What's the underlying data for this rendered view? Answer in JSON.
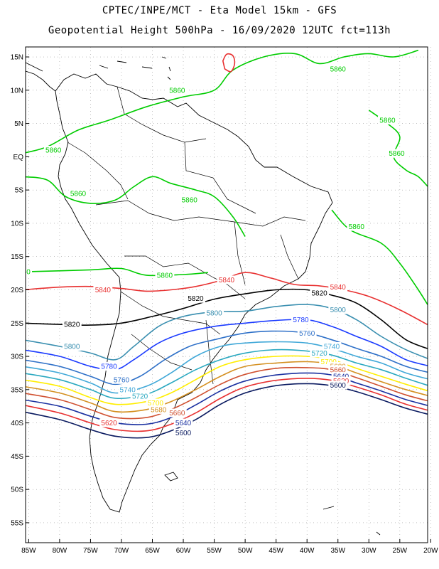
{
  "title": {
    "line1": "CPTEC/INPE/MCT -  Eta Model 15km - GFS",
    "line2": "Geopotential Height 500hPa - 16/09/2020 12UTC fct=113h"
  },
  "axes": {
    "lat_labels": [
      "15N",
      "10N",
      "5N",
      "EQ",
      "5S",
      "10S",
      "15S",
      "20S",
      "25S",
      "30S",
      "35S",
      "40S",
      "45S",
      "50S",
      "55S"
    ],
    "lat_values": [
      15,
      10,
      5,
      0,
      -5,
      -10,
      -15,
      -20,
      -25,
      -30,
      -35,
      -40,
      -45,
      -50,
      -55
    ],
    "lon_labels": [
      "85W",
      "80W",
      "75W",
      "70W",
      "65W",
      "60W",
      "55W",
      "50W",
      "45W",
      "40W",
      "35W",
      "30W",
      "25W",
      "20W"
    ],
    "lon_values": [
      -85,
      -80,
      -75,
      -70,
      -65,
      -60,
      -55,
      -50,
      -45,
      -40,
      -35,
      -30,
      -25,
      -20
    ],
    "lon_range": [
      -85.5,
      -20.5
    ],
    "lat_range": [
      -58,
      16.5
    ]
  },
  "colors": {
    "c5860": "#00cc00",
    "c5840": "#e83030",
    "c5820": "#000000",
    "c5800": "#3a8fb0",
    "c5780": "#1a3aff",
    "c5760": "#2e70c8",
    "c5740": "#40a8d8",
    "c5720": "#2aa8c0",
    "c5700": "#ffee00",
    "c5680": "#d49020",
    "c5660": "#d05030",
    "c5640": "#1a30a0",
    "c5600": "#0a1a60",
    "coast": "#000000",
    "grid": "#999999"
  },
  "contours": [
    {
      "value": 5860,
      "color_key": "c5860",
      "label": "5860",
      "points": [
        [
          -86,
          -17.3
        ],
        [
          -75,
          -17
        ],
        [
          -70,
          -16.8
        ],
        [
          -66,
          -17.8
        ],
        [
          -60,
          -17.7
        ],
        [
          -56,
          -17.4
        ]
      ],
      "labels": [
        [
          -86,
          -17.3
        ],
        [
          -63,
          -17.8
        ]
      ]
    },
    {
      "value": 5860,
      "color_key": "c5860",
      "label": "5860",
      "points": [
        [
          -86,
          0.5
        ],
        [
          -82,
          1.5
        ],
        [
          -77,
          4
        ],
        [
          -72,
          5.5
        ],
        [
          -66,
          7.5
        ],
        [
          -60,
          9
        ],
        [
          -55,
          10
        ],
        [
          -52,
          13
        ],
        [
          -47,
          15
        ],
        [
          -42,
          15.5
        ],
        [
          -38,
          14
        ],
        [
          -34,
          15
        ],
        [
          -30,
          15.5
        ],
        [
          -26,
          15
        ],
        [
          -22,
          16
        ]
      ],
      "labels": [
        [
          -61,
          10
        ],
        [
          -35,
          13.2
        ],
        [
          -81,
          1
        ]
      ]
    },
    {
      "value": 5860,
      "color_key": "c5860",
      "label": "5860",
      "points": [
        [
          -86,
          -3
        ],
        [
          -82,
          -3.5
        ],
        [
          -79,
          -6
        ],
        [
          -75,
          -7
        ],
        [
          -71,
          -6.5
        ],
        [
          -68,
          -4.5
        ],
        [
          -65,
          -3
        ],
        [
          -62,
          -4
        ],
        [
          -58,
          -5
        ],
        [
          -55,
          -6
        ],
        [
          -52,
          -9
        ],
        [
          -50,
          -12
        ]
      ],
      "labels": [
        [
          -77,
          -5.5
        ],
        [
          -59,
          -6.5
        ]
      ]
    },
    {
      "value": 5860,
      "color_key": "c5860",
      "label": "5860",
      "points": [
        [
          -36,
          -8
        ],
        [
          -33,
          -11
        ],
        [
          -28,
          -13
        ],
        [
          -25,
          -16
        ],
        [
          -22,
          -20
        ],
        [
          -20,
          -23
        ]
      ],
      "labels": [
        [
          -32,
          -10.5
        ]
      ]
    },
    {
      "value": 5860,
      "color_key": "c5860",
      "label": "5860",
      "points": [
        [
          -30,
          7
        ],
        [
          -27,
          5
        ],
        [
          -25,
          3
        ],
        [
          -26,
          0
        ],
        [
          -24,
          -2
        ],
        [
          -22,
          -3
        ],
        [
          -20,
          -5
        ]
      ],
      "labels": [
        [
          -27,
          5.5
        ],
        [
          -25.5,
          0.5
        ]
      ]
    },
    {
      "value": 5840,
      "color_key": "c5840",
      "label": "5840",
      "points": [
        [
          -86,
          -20
        ],
        [
          -80,
          -19.6
        ],
        [
          -75,
          -19.5
        ],
        [
          -70,
          -19.8
        ],
        [
          -66,
          -20.2
        ],
        [
          -62,
          -20
        ],
        [
          -58,
          -19.5
        ],
        [
          -54,
          -18.6
        ],
        [
          -50,
          -17.4
        ],
        [
          -46,
          -18.2
        ],
        [
          -42,
          -19.2
        ],
        [
          -38,
          -19.4
        ],
        [
          -34,
          -20
        ],
        [
          -30,
          -21
        ],
        [
          -25,
          -23
        ],
        [
          -20,
          -25.5
        ]
      ],
      "labels": [
        [
          -73,
          -20
        ],
        [
          -53,
          -18.5
        ],
        [
          -35,
          -19.6
        ]
      ]
    },
    {
      "value": 5820,
      "color_key": "c5820",
      "label": "5820",
      "points": [
        [
          -86,
          -25
        ],
        [
          -80,
          -25.2
        ],
        [
          -75,
          -25.3
        ],
        [
          -70,
          -25
        ],
        [
          -65,
          -24
        ],
        [
          -60,
          -22.8
        ],
        [
          -55,
          -21.4
        ],
        [
          -50,
          -20.6
        ],
        [
          -45,
          -20
        ],
        [
          -40,
          -20
        ],
        [
          -36,
          -20.8
        ],
        [
          -32,
          -22
        ],
        [
          -28,
          -24.5
        ],
        [
          -24,
          -27.5
        ],
        [
          -20,
          -29
        ]
      ],
      "labels": [
        [
          -78,
          -25.2
        ],
        [
          -58,
          -21.3
        ],
        [
          -38,
          -20.5
        ]
      ]
    },
    {
      "value": 5800,
      "color_key": "c5800",
      "label": "5800",
      "points": [
        [
          -86,
          -27.5
        ],
        [
          -80,
          -28.5
        ],
        [
          -75,
          -29.5
        ],
        [
          -71,
          -30.5
        ],
        [
          -68,
          -28.5
        ],
        [
          -64,
          -25.5
        ],
        [
          -60,
          -24
        ],
        [
          -55,
          -23.3
        ],
        [
          -50,
          -23.2
        ],
        [
          -45,
          -22.5
        ],
        [
          -40,
          -22.2
        ],
        [
          -36,
          -22.8
        ],
        [
          -32,
          -24.5
        ],
        [
          -28,
          -27
        ],
        [
          -24,
          -29
        ],
        [
          -20,
          -30.5
        ]
      ],
      "labels": [
        [
          -78,
          -28.5
        ],
        [
          -55,
          -23.5
        ],
        [
          -35,
          -23
        ]
      ]
    },
    {
      "value": 5780,
      "color_key": "c5780",
      "label": "5780",
      "points": [
        [
          -86,
          -29
        ],
        [
          -80,
          -30
        ],
        [
          -75,
          -31.5
        ],
        [
          -71,
          -32
        ],
        [
          -68,
          -30.5
        ],
        [
          -64,
          -28
        ],
        [
          -60,
          -26.5
        ],
        [
          -55,
          -25.5
        ],
        [
          -50,
          -25
        ],
        [
          -45,
          -24.6
        ],
        [
          -40,
          -24.5
        ],
        [
          -36,
          -25.5
        ],
        [
          -32,
          -27
        ],
        [
          -28,
          -28.5
        ],
        [
          -24,
          -30.5
        ],
        [
          -20,
          -31.5
        ]
      ],
      "labels": [
        [
          -72,
          -31.5
        ],
        [
          -41,
          -24.5
        ]
      ]
    },
    {
      "value": 5760,
      "color_key": "c5760",
      "label": "5760",
      "points": [
        [
          -86,
          -30.5
        ],
        [
          -80,
          -31.5
        ],
        [
          -75,
          -33
        ],
        [
          -71,
          -34.2
        ],
        [
          -67,
          -33
        ],
        [
          -63,
          -30.5
        ],
        [
          -59,
          -28.5
        ],
        [
          -55,
          -27.5
        ],
        [
          -50,
          -26.5
        ],
        [
          -45,
          -26.2
        ],
        [
          -40,
          -26.5
        ],
        [
          -36,
          -27.5
        ],
        [
          -32,
          -28.8
        ],
        [
          -28,
          -30
        ],
        [
          -24,
          -31.5
        ],
        [
          -20,
          -32.5
        ]
      ],
      "labels": [
        [
          -70,
          -33.5
        ],
        [
          -40,
          -26.5
        ]
      ]
    },
    {
      "value": 5740,
      "color_key": "c5740",
      "label": "5740",
      "points": [
        [
          -86,
          -31.5
        ],
        [
          -80,
          -32.5
        ],
        [
          -75,
          -34
        ],
        [
          -71,
          -35.5
        ],
        [
          -66,
          -34.5
        ],
        [
          -62,
          -32.5
        ],
        [
          -58,
          -30
        ],
        [
          -54,
          -28.5
        ],
        [
          -50,
          -28
        ],
        [
          -45,
          -27.8
        ],
        [
          -40,
          -28
        ],
        [
          -36,
          -28.8
        ],
        [
          -32,
          -30
        ],
        [
          -28,
          -31
        ],
        [
          -24,
          -32.5
        ],
        [
          -20,
          -33.5
        ]
      ],
      "labels": [
        [
          -69,
          -35
        ],
        [
          -36,
          -28.5
        ]
      ]
    },
    {
      "value": 5720,
      "color_key": "c5720",
      "label": "5720",
      "points": [
        [
          -86,
          -32.5
        ],
        [
          -80,
          -33.5
        ],
        [
          -75,
          -35
        ],
        [
          -71,
          -36.3
        ],
        [
          -66,
          -35.7
        ],
        [
          -62,
          -34
        ],
        [
          -58,
          -32
        ],
        [
          -54,
          -30.5
        ],
        [
          -50,
          -29.5
        ],
        [
          -45,
          -29
        ],
        [
          -40,
          -29.2
        ],
        [
          -36,
          -29.8
        ],
        [
          -32,
          -31
        ],
        [
          -28,
          -32
        ],
        [
          -24,
          -33.3
        ],
        [
          -20,
          -34.5
        ]
      ],
      "labels": [
        [
          -67,
          -36
        ],
        [
          -38,
          -29.5
        ]
      ]
    },
    {
      "value": 5700,
      "color_key": "c5700",
      "label": "5700",
      "points": [
        [
          -86,
          -33.5
        ],
        [
          -80,
          -34.5
        ],
        [
          -75,
          -36.2
        ],
        [
          -71,
          -37.2
        ],
        [
          -66,
          -36.8
        ],
        [
          -62,
          -35.5
        ],
        [
          -58,
          -33.5
        ],
        [
          -54,
          -31.5
        ],
        [
          -50,
          -30.5
        ],
        [
          -45,
          -30
        ],
        [
          -40,
          -30
        ],
        [
          -36,
          -30.5
        ],
        [
          -32,
          -31.8
        ],
        [
          -28,
          -33
        ],
        [
          -24,
          -34.2
        ],
        [
          -20,
          -35.3
        ]
      ],
      "labels": [
        [
          -64.5,
          -37
        ],
        [
          -36.5,
          -30.8
        ]
      ]
    },
    {
      "value": 5680,
      "color_key": "c5680",
      "label": "5680",
      "points": [
        [
          -86,
          -34.5
        ],
        [
          -80,
          -35.5
        ],
        [
          -75,
          -37
        ],
        [
          -71,
          -38.3
        ],
        [
          -66,
          -38
        ],
        [
          -62,
          -36.8
        ],
        [
          -58,
          -35
        ],
        [
          -54,
          -33
        ],
        [
          -50,
          -31.5
        ],
        [
          -45,
          -31
        ],
        [
          -40,
          -30.8
        ],
        [
          -36,
          -31.2
        ],
        [
          -32,
          -32.5
        ],
        [
          -28,
          -33.8
        ],
        [
          -24,
          -35
        ],
        [
          -20,
          -36
        ]
      ],
      "labels": [
        [
          -64,
          -38
        ],
        [
          -35,
          -31.5
        ]
      ]
    },
    {
      "value": 5660,
      "color_key": "c5660",
      "label": "5660",
      "points": [
        [
          -86,
          -35.5
        ],
        [
          -80,
          -36.5
        ],
        [
          -75,
          -38
        ],
        [
          -71,
          -39.2
        ],
        [
          -66,
          -39.2
        ],
        [
          -62,
          -38
        ],
        [
          -58,
          -36.2
        ],
        [
          -54,
          -34.2
        ],
        [
          -50,
          -32.7
        ],
        [
          -45,
          -31.8
        ],
        [
          -40,
          -31.7
        ],
        [
          -36,
          -32
        ],
        [
          -32,
          -33.2
        ],
        [
          -28,
          -34.5
        ],
        [
          -24,
          -35.8
        ],
        [
          -20,
          -36.8
        ]
      ],
      "labels": [
        [
          -61,
          -38.5
        ],
        [
          -35,
          -32
        ]
      ]
    },
    {
      "value": 5640,
      "color_key": "c5640",
      "label": "5640",
      "points": [
        [
          -86,
          -36.5
        ],
        [
          -80,
          -37.5
        ],
        [
          -75,
          -39
        ],
        [
          -71,
          -40
        ],
        [
          -66,
          -40.2
        ],
        [
          -62,
          -39.2
        ],
        [
          -58,
          -37.3
        ],
        [
          -54,
          -35.2
        ],
        [
          -50,
          -33.7
        ],
        [
          -45,
          -32.8
        ],
        [
          -40,
          -32.5
        ],
        [
          -36,
          -32.8
        ],
        [
          -32,
          -34
        ],
        [
          -28,
          -35.2
        ],
        [
          -24,
          -36.5
        ],
        [
          -20,
          -37.5
        ]
      ],
      "labels": [
        [
          -60,
          -40
        ],
        [
          -34.5,
          -33
        ]
      ]
    },
    {
      "value": 5620,
      "color_key": "c5840",
      "label": "5620",
      "points": [
        [
          -86,
          -37.3
        ],
        [
          -80,
          -38.5
        ],
        [
          -75,
          -40
        ],
        [
          -71,
          -41
        ],
        [
          -66,
          -41.2
        ],
        [
          -62,
          -40.2
        ],
        [
          -58,
          -38.5
        ],
        [
          -54,
          -36.3
        ],
        [
          -50,
          -34.6
        ],
        [
          -45,
          -33.6
        ],
        [
          -40,
          -33.3
        ],
        [
          -36,
          -33.6
        ],
        [
          -32,
          -34.6
        ],
        [
          -28,
          -35.8
        ],
        [
          -24,
          -37.2
        ],
        [
          -20,
          -38.2
        ]
      ],
      "labels": [
        [
          -72,
          -40
        ],
        [
          -34.5,
          -33.7
        ]
      ]
    },
    {
      "value": 5600,
      "color_key": "c5600",
      "label": "5600",
      "points": [
        [
          -86,
          -38.3
        ],
        [
          -80,
          -39.5
        ],
        [
          -75,
          -41
        ],
        [
          -71,
          -42
        ],
        [
          -66,
          -42.2
        ],
        [
          -62,
          -41.2
        ],
        [
          -58,
          -39.5
        ],
        [
          -54,
          -37.2
        ],
        [
          -50,
          -35.5
        ],
        [
          -45,
          -34.4
        ],
        [
          -40,
          -34.1
        ],
        [
          -36,
          -34.4
        ],
        [
          -32,
          -35.3
        ],
        [
          -28,
          -36.5
        ],
        [
          -24,
          -37.8
        ],
        [
          -20,
          -38.8
        ]
      ],
      "labels": [
        [
          -60,
          -41.5
        ],
        [
          -35,
          -34.3
        ]
      ]
    },
    {
      "value": 5860,
      "color_key": "c5840",
      "label": "",
      "closed": true,
      "points": [
        [
          -53.6,
          14.4
        ],
        [
          -53,
          15.4
        ],
        [
          -52,
          15.2
        ],
        [
          -51.7,
          14
        ],
        [
          -52.3,
          12.8
        ],
        [
          -53.3,
          13.2
        ]
      ],
      "labels": []
    }
  ]
}
